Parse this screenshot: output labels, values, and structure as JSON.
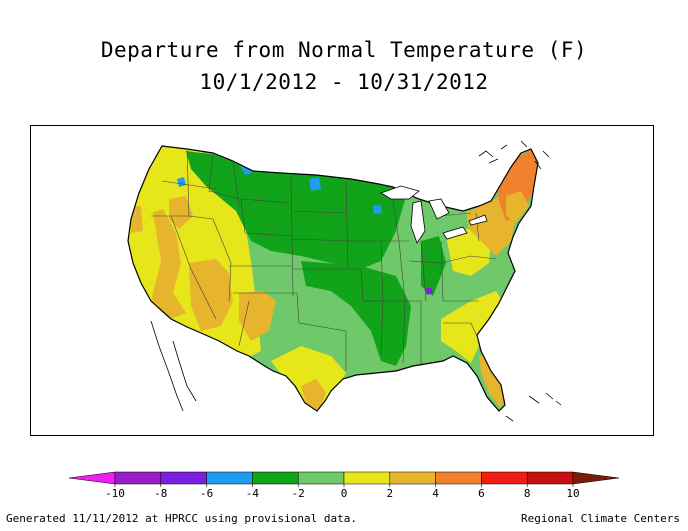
{
  "title": {
    "line1": "Departure from Normal Temperature (F)",
    "line2": "10/1/2012 - 10/31/2012"
  },
  "legend": {
    "bins": [
      {
        "from": -10,
        "to": -8,
        "color": "#9b1fc8"
      },
      {
        "from": -8,
        "to": -6,
        "color": "#7b1fe0"
      },
      {
        "from": -6,
        "to": -4,
        "color": "#1f9cf0"
      },
      {
        "from": -4,
        "to": -2,
        "color": "#11a31a"
      },
      {
        "from": -2,
        "to": 0,
        "color": "#6fc86a"
      },
      {
        "from": 0,
        "to": 2,
        "color": "#e6e61a"
      },
      {
        "from": 2,
        "to": 4,
        "color": "#e6b42d"
      },
      {
        "from": 4,
        "to": 6,
        "color": "#f0822d"
      },
      {
        "from": 6,
        "to": 8,
        "color": "#f01e14"
      },
      {
        "from": 8,
        "to": 10,
        "color": "#c80f0f"
      }
    ],
    "low_end_color": "#f01ef0",
    "high_end_color": "#781e0a",
    "tick_labels": [
      "-10",
      "-8",
      "-6",
      "-4",
      "-2",
      "0",
      "2",
      "4",
      "6",
      "8",
      "10"
    ]
  },
  "footer": {
    "left": "Generated 11/11/2012 at HPRCC using provisional data.",
    "right": "Regional Climate Centers"
  }
}
